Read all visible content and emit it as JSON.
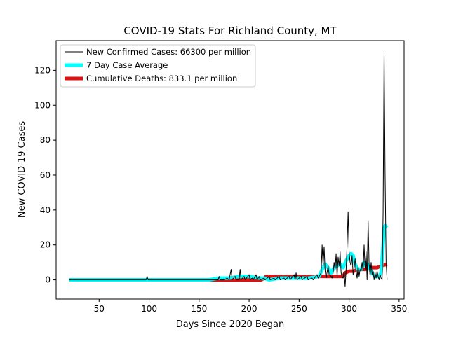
{
  "chart_data": {
    "type": "line",
    "title": "COVID-19 Stats For Richland County, MT",
    "xlabel": "Days Since 2020 Began",
    "ylabel": "New COVID-19 Cases",
    "xlim": [
      7,
      355
    ],
    "ylim": [
      -11,
      137
    ],
    "xticks": [
      50,
      100,
      150,
      200,
      250,
      300,
      350
    ],
    "yticks": [
      0,
      20,
      40,
      60,
      80,
      100,
      120
    ],
    "grid": false,
    "legend_position": "top-left",
    "series": [
      {
        "name": "New Confirmed Cases: 66300 per million",
        "color": "#000000",
        "points": [
          [
            20,
            0
          ],
          [
            40,
            0
          ],
          [
            60,
            0
          ],
          [
            80,
            0
          ],
          [
            97,
            0
          ],
          [
            98,
            2
          ],
          [
            99,
            0
          ],
          [
            120,
            0
          ],
          [
            140,
            0
          ],
          [
            160,
            0
          ],
          [
            169,
            0
          ],
          [
            170,
            2
          ],
          [
            171,
            0
          ],
          [
            175,
            0
          ],
          [
            178,
            1
          ],
          [
            180,
            0
          ],
          [
            182,
            6
          ],
          [
            183,
            0
          ],
          [
            186,
            2
          ],
          [
            187,
            0
          ],
          [
            190,
            0
          ],
          [
            191,
            6
          ],
          [
            192,
            0
          ],
          [
            195,
            2
          ],
          [
            196,
            0
          ],
          [
            200,
            3
          ],
          [
            201,
            0
          ],
          [
            203,
            1
          ],
          [
            204,
            0
          ],
          [
            207,
            3
          ],
          [
            208,
            0
          ],
          [
            210,
            2
          ],
          [
            211,
            0
          ],
          [
            215,
            1
          ],
          [
            216,
            0
          ],
          [
            220,
            2
          ],
          [
            221,
            0
          ],
          [
            225,
            1
          ],
          [
            226,
            0
          ],
          [
            230,
            2
          ],
          [
            231,
            0
          ],
          [
            235,
            1
          ],
          [
            236,
            0
          ],
          [
            240,
            2
          ],
          [
            241,
            0
          ],
          [
            245,
            3
          ],
          [
            246,
            0
          ],
          [
            247,
            4
          ],
          [
            248,
            0
          ],
          [
            252,
            2
          ],
          [
            253,
            0
          ],
          [
            258,
            2
          ],
          [
            259,
            0
          ],
          [
            263,
            1
          ],
          [
            264,
            0
          ],
          [
            268,
            3
          ],
          [
            269,
            1
          ],
          [
            272,
            4
          ],
          [
            273,
            20
          ],
          [
            274,
            8
          ],
          [
            275,
            19
          ],
          [
            276,
            5
          ],
          [
            277,
            1
          ],
          [
            279,
            8
          ],
          [
            280,
            3
          ],
          [
            282,
            2
          ],
          [
            283,
            1
          ],
          [
            284,
            4
          ],
          [
            285,
            10
          ],
          [
            286,
            6
          ],
          [
            287,
            15
          ],
          [
            288,
            2
          ],
          [
            289,
            13
          ],
          [
            290,
            8
          ],
          [
            291,
            16
          ],
          [
            292,
            4
          ],
          [
            293,
            2
          ],
          [
            294,
            1
          ],
          [
            295,
            5
          ],
          [
            296,
            -4
          ],
          [
            297,
            6
          ],
          [
            298,
            20
          ],
          [
            299,
            39
          ],
          [
            300,
            16
          ],
          [
            301,
            10
          ],
          [
            302,
            8
          ],
          [
            303,
            14
          ],
          [
            304,
            3
          ],
          [
            305,
            7
          ],
          [
            306,
            12
          ],
          [
            307,
            5
          ],
          [
            308,
            1
          ],
          [
            309,
            8
          ],
          [
            310,
            2
          ],
          [
            311,
            6
          ],
          [
            312,
            5
          ],
          [
            313,
            10
          ],
          [
            314,
            5
          ],
          [
            315,
            20
          ],
          [
            316,
            6
          ],
          [
            317,
            16
          ],
          [
            318,
            0
          ],
          [
            319,
            34
          ],
          [
            320,
            9
          ],
          [
            321,
            2
          ],
          [
            322,
            10
          ],
          [
            323,
            3
          ],
          [
            324,
            5
          ],
          [
            325,
            0
          ],
          [
            326,
            4
          ],
          [
            327,
            1
          ],
          [
            328,
            5
          ],
          [
            329,
            2
          ],
          [
            330,
            0
          ],
          [
            331,
            3
          ],
          [
            332,
            1
          ],
          [
            333,
            0
          ],
          [
            334,
            38
          ],
          [
            335,
            131
          ],
          [
            336,
            60
          ],
          [
            337,
            10
          ],
          [
            338,
            0
          ]
        ]
      },
      {
        "name": "7 Day Case Average",
        "color": "#00ffff",
        "points": [
          [
            20,
            0
          ],
          [
            100,
            0
          ],
          [
            160,
            0
          ],
          [
            170,
            1
          ],
          [
            180,
            1
          ],
          [
            190,
            2
          ],
          [
            200,
            2
          ],
          [
            210,
            1
          ],
          [
            215,
            1
          ],
          [
            220,
            0
          ],
          [
            230,
            1
          ],
          [
            240,
            1
          ],
          [
            250,
            1
          ],
          [
            260,
            1
          ],
          [
            270,
            2
          ],
          [
            273,
            6
          ],
          [
            276,
            9
          ],
          [
            279,
            7
          ],
          [
            282,
            4
          ],
          [
            285,
            7
          ],
          [
            288,
            8
          ],
          [
            291,
            9
          ],
          [
            294,
            7
          ],
          [
            297,
            11
          ],
          [
            300,
            14
          ],
          [
            302,
            15
          ],
          [
            304,
            14
          ],
          [
            306,
            9
          ],
          [
            309,
            6
          ],
          [
            312,
            6
          ],
          [
            315,
            10
          ],
          [
            318,
            9
          ],
          [
            320,
            7
          ],
          [
            323,
            4
          ],
          [
            326,
            2
          ],
          [
            328,
            2
          ],
          [
            330,
            2
          ],
          [
            332,
            4
          ],
          [
            334,
            20
          ],
          [
            335,
            30
          ],
          [
            336,
            31
          ],
          [
            338,
            30
          ]
        ]
      },
      {
        "name": "Cumulative Deaths: 833.1 per million",
        "color": "#dd1111",
        "points": [
          [
            20,
            0
          ],
          [
            100,
            0
          ],
          [
            200,
            0
          ],
          [
            212,
            0
          ],
          [
            215,
            1
          ],
          [
            217,
            2
          ],
          [
            250,
            2
          ],
          [
            270,
            2
          ],
          [
            290,
            2
          ],
          [
            294,
            2
          ],
          [
            296,
            4
          ],
          [
            300,
            5
          ],
          [
            305,
            5
          ],
          [
            308,
            6
          ],
          [
            316,
            6
          ],
          [
            320,
            7
          ],
          [
            328,
            7
          ],
          [
            332,
            8
          ],
          [
            338,
            9
          ]
        ]
      }
    ]
  }
}
